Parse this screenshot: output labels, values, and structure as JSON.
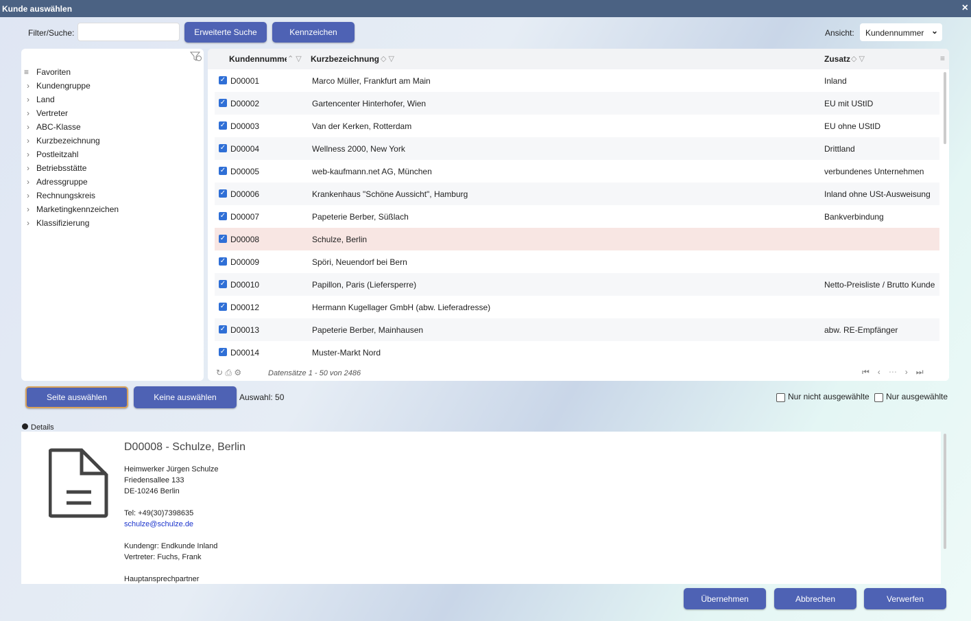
{
  "window": {
    "title": "Kunde auswählen",
    "close": "×"
  },
  "toolbar": {
    "filter_label": "Filter/Suche:",
    "buttons": [
      "Erweiterte Suche",
      "Kennzeichen"
    ],
    "view_label": "Ansicht:",
    "view_value": "Kundennummer"
  },
  "tree": {
    "items": [
      "Favoriten",
      "Kundengruppe",
      "Land",
      "Vertreter",
      "ABC-Klasse",
      "Kurzbezeichnung",
      "Postleitzahl",
      "Betriebsstätte",
      "Adressgruppe",
      "Rechnungskreis",
      "Marketingkennzeichen",
      "Klassifizierung"
    ]
  },
  "table": {
    "columns": [
      "Kundennummer",
      "Kurzbezeichnung",
      "Zusatz"
    ],
    "rows": [
      {
        "id": "D00001",
        "name": "Marco Müller, Frankfurt am Main",
        "extra": "Inland"
      },
      {
        "id": "D00002",
        "name": "Gartencenter Hinterhofer, Wien",
        "extra": "EU mit UStID"
      },
      {
        "id": "D00003",
        "name": "Van der Kerken, Rotterdam",
        "extra": "EU ohne UStID"
      },
      {
        "id": "D00004",
        "name": "Wellness 2000, New York",
        "extra": "Drittland"
      },
      {
        "id": "D00005",
        "name": "web-kaufmann.net AG, München",
        "extra": "verbundenes Unternehmen"
      },
      {
        "id": "D00006",
        "name": "Krankenhaus \"Schöne Aussicht\", Hamburg",
        "extra": "Inland ohne USt-Ausweisung"
      },
      {
        "id": "D00007",
        "name": "Papeterie Berber, Süßlach",
        "extra": "Bankverbindung"
      },
      {
        "id": "D00008",
        "name": "Schulze, Berlin"
      },
      {
        "id": "D00009",
        "name": "Spöri, Neuendorf bei Bern"
      },
      {
        "id": "D00010",
        "name": "Papillon, Paris (Liefersperre)",
        "extra": "Netto-Preisliste / Brutto Kunde"
      },
      {
        "id": "D00012",
        "name": "Hermann Kugellager GmbH (abw. Lieferadresse)"
      },
      {
        "id": "D00013",
        "name": "Papeterie Berber, Mainhausen",
        "extra": "abw. RE-Empfänger"
      },
      {
        "id": "D00014",
        "name": "Muster-Markt Nord"
      }
    ],
    "footer": "Datensätze 1 - 50 von 2486"
  },
  "selection": {
    "buttons": [
      "Seite auswählen",
      "Keine auswählen"
    ],
    "count": "Auswahl: 50",
    "filters": [
      "Nur nicht ausgewählte",
      "Nur ausgewählte"
    ]
  },
  "details": {
    "label": "Details",
    "heading": "D00008 - Schulze, Berlin",
    "address": [
      "Heimwerker Jürgen Schulze",
      "Friedensallee 133",
      "DE-10246 Berlin"
    ],
    "phone": "Tel: +49(30)7398635",
    "email": "schulze@schulze.de",
    "meta": [
      "Kundengr: Endkunde Inland",
      "Vertreter: Fuchs, Frank"
    ],
    "contact_heading": "Hauptansprechpartner"
  },
  "actions": [
    "Übernehmen",
    "Abbrechen",
    "Verwerfen"
  ]
}
